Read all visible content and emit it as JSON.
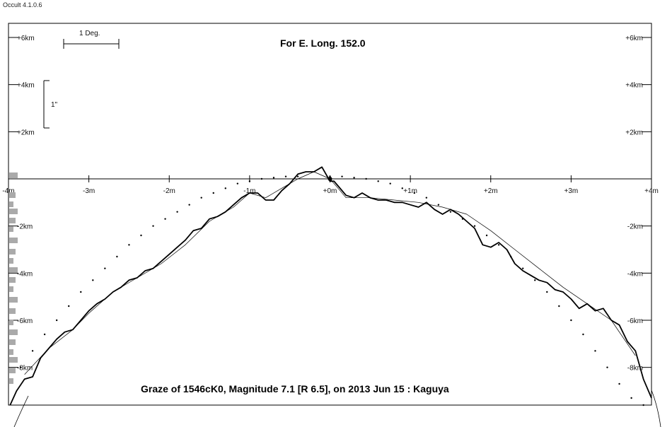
{
  "window": {
    "title": "Occult 4.1.0.6"
  },
  "chart_data": {
    "type": "line",
    "title": "For E. Long. 152.0",
    "caption": "Graze of  1546cK0,  Magnitude 7.1 [R 6.5],  on 2013 Jun 15  :  Kaguya",
    "scale_bar_label": "1 Deg.",
    "vertical_scale_label": "1\"",
    "xlim": [
      -4,
      4
    ],
    "ylim": [
      -9.6,
      6.6
    ],
    "x_ticks": [
      {
        "value": -4,
        "label": "-4m"
      },
      {
        "value": -3,
        "label": "-3m"
      },
      {
        "value": -2,
        "label": "-2m"
      },
      {
        "value": -1,
        "label": "-1m"
      },
      {
        "value": 0,
        "label": "+0m"
      },
      {
        "value": 1,
        "label": "+1m"
      },
      {
        "value": 2,
        "label": "+2m"
      },
      {
        "value": 3,
        "label": "+3m"
      },
      {
        "value": 4,
        "label": "+4m"
      }
    ],
    "y_ticks_upper": [
      {
        "value": 6,
        "label": "+6km"
      },
      {
        "value": 4,
        "label": "+4km"
      },
      {
        "value": 2,
        "label": "+2km"
      }
    ],
    "y_ticks_lower": [
      {
        "value": -2,
        "label": "-2km"
      },
      {
        "value": -4,
        "label": "-4km"
      },
      {
        "value": -6,
        "label": "-6km"
      },
      {
        "value": -8,
        "label": "-8km"
      }
    ],
    "series": [
      {
        "kind": "limb-profile",
        "style": "thick",
        "x": [
          -3.98,
          -3.9,
          -3.8,
          -3.7,
          -3.6,
          -3.5,
          -3.4,
          -3.3,
          -3.2,
          -3.1,
          -3.0,
          -2.9,
          -2.8,
          -2.7,
          -2.6,
          -2.5,
          -2.4,
          -2.3,
          -2.2,
          -2.1,
          -2.0,
          -1.9,
          -1.8,
          -1.7,
          -1.6,
          -1.5,
          -1.4,
          -1.3,
          -1.2,
          -1.1,
          -1.0,
          -0.9,
          -0.8,
          -0.7,
          -0.6,
          -0.5,
          -0.4,
          -0.3,
          -0.2,
          -0.1,
          0.0,
          0.05,
          0.1,
          0.2,
          0.3,
          0.4,
          0.5,
          0.6,
          0.7,
          0.8,
          0.9,
          1.0,
          1.1,
          1.2,
          1.3,
          1.4,
          1.5,
          1.6,
          1.7,
          1.8,
          1.9,
          2.0,
          2.1,
          2.2,
          2.3,
          2.4,
          2.5,
          2.6,
          2.7,
          2.8,
          2.9,
          3.0,
          3.1,
          3.2,
          3.3,
          3.4,
          3.5,
          3.6,
          3.7,
          3.8,
          3.9,
          4.0
        ],
        "y": [
          -9.6,
          -9.0,
          -8.5,
          -8.4,
          -7.6,
          -7.2,
          -6.8,
          -6.5,
          -6.4,
          -6.0,
          -5.6,
          -5.3,
          -5.1,
          -4.8,
          -4.6,
          -4.3,
          -4.2,
          -3.9,
          -3.8,
          -3.5,
          -3.2,
          -2.9,
          -2.6,
          -2.2,
          -2.1,
          -1.7,
          -1.6,
          -1.4,
          -1.1,
          -0.8,
          -0.6,
          -0.6,
          -0.9,
          -0.9,
          -0.5,
          -0.2,
          0.2,
          0.3,
          0.3,
          0.5,
          -0.1,
          -0.1,
          -0.3,
          -0.7,
          -0.8,
          -0.6,
          -0.8,
          -0.9,
          -0.9,
          -1.0,
          -1.0,
          -1.1,
          -1.2,
          -1.0,
          -1.3,
          -1.5,
          -1.3,
          -1.5,
          -1.8,
          -2.1,
          -2.8,
          -2.9,
          -2.7,
          -3.0,
          -3.6,
          -3.9,
          -4.1,
          -4.3,
          -4.4,
          -4.7,
          -4.8,
          -5.1,
          -5.5,
          -5.3,
          -5.6,
          -5.5,
          -6.0,
          -6.2,
          -6.9,
          -7.3,
          -8.5,
          -9.3
        ]
      },
      {
        "kind": "smoothed-profile",
        "style": "thin",
        "x": [
          -3.8,
          -3.5,
          -3.2,
          -3.0,
          -2.7,
          -2.4,
          -2.1,
          -1.8,
          -1.5,
          -1.2,
          -1.0,
          -0.8,
          -0.6,
          -0.4,
          -0.2,
          0.0,
          0.1,
          0.2,
          0.5,
          0.8,
          1.1,
          1.4,
          1.7,
          2.0,
          2.3,
          2.6,
          2.9,
          3.2,
          3.5,
          3.8
        ],
        "y": [
          -8.3,
          -7.2,
          -6.4,
          -5.7,
          -4.8,
          -4.2,
          -3.6,
          -2.8,
          -1.8,
          -1.2,
          -0.6,
          -0.8,
          -0.4,
          0.0,
          0.3,
          0.0,
          -0.4,
          -0.8,
          -0.8,
          -0.9,
          -1.0,
          -1.2,
          -1.5,
          -2.2,
          -3.0,
          -3.8,
          -4.6,
          -5.3,
          -6.0,
          -7.5
        ]
      },
      {
        "kind": "lunar-limb",
        "style": "dots",
        "x": [
          -3.85,
          -3.7,
          -3.55,
          -3.4,
          -3.25,
          -3.1,
          -2.95,
          -2.8,
          -2.65,
          -2.5,
          -2.35,
          -2.2,
          -2.05,
          -1.9,
          -1.75,
          -1.6,
          -1.45,
          -1.3,
          -1.15,
          -1.0,
          -0.85,
          -0.7,
          -0.55,
          -0.4,
          0.0,
          0.15,
          0.3,
          0.45,
          0.6,
          0.75,
          0.9,
          1.05,
          1.2,
          1.35,
          1.5,
          1.65,
          1.8,
          1.95,
          2.1,
          2.25,
          2.4,
          2.55,
          2.7,
          2.85,
          3.0,
          3.15,
          3.3,
          3.45,
          3.6,
          3.75,
          3.9
        ],
        "y": [
          -8.0,
          -7.3,
          -6.6,
          -6.0,
          -5.4,
          -4.8,
          -4.3,
          -3.8,
          -3.3,
          -2.8,
          -2.4,
          -2.0,
          -1.7,
          -1.4,
          -1.1,
          -0.8,
          -0.6,
          -0.4,
          -0.2,
          -0.1,
          0.0,
          0.05,
          0.1,
          0.1,
          0.1,
          0.1,
          0.05,
          0.0,
          -0.1,
          -0.2,
          -0.4,
          -0.6,
          -0.8,
          -1.1,
          -1.4,
          -1.7,
          -2.0,
          -2.4,
          -2.8,
          -3.3,
          -3.8,
          -4.3,
          -4.8,
          -5.4,
          -6.0,
          -6.6,
          -7.3,
          -8.0,
          -8.7,
          -9.3,
          -9.6
        ]
      }
    ],
    "grid": false,
    "legend": "none"
  }
}
